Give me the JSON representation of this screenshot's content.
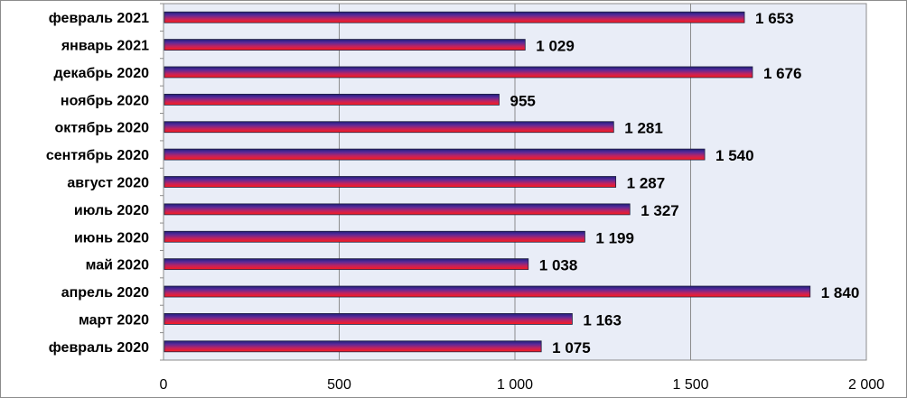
{
  "chart_data": {
    "type": "bar",
    "orientation": "horizontal",
    "categories": [
      "февраль 2021",
      "январь 2021",
      "декабрь 2020",
      "ноябрь 2020",
      "октябрь 2020",
      "сентябрь 2020",
      "август 2020",
      "июль 2020",
      "июнь 2020",
      "май 2020",
      "апрель 2020",
      "март 2020",
      "февраль 2020"
    ],
    "values": [
      1653,
      1029,
      1676,
      955,
      1281,
      1540,
      1287,
      1327,
      1199,
      1038,
      1840,
      1163,
      1075
    ],
    "value_labels": [
      "1 653",
      "1 029",
      "1 676",
      "955",
      "1 281",
      "1 540",
      "1 287",
      "1 327",
      "1 199",
      "1 038",
      "1 840",
      "1 163",
      "1 075"
    ],
    "xlim": [
      0,
      2000
    ],
    "x_ticks": [
      0,
      500,
      1000,
      1500,
      2000
    ],
    "x_tick_labels": [
      "0",
      "500",
      "1 000",
      "1 500",
      "2 000"
    ],
    "grid": "vertical",
    "legend": "none",
    "title": "",
    "xlabel": "",
    "ylabel": ""
  },
  "colors": {
    "plot_background": "#e9edf7",
    "gridline": "#8c8c8c",
    "bar_gradient": [
      "#1e1e78",
      "#5a2a9a",
      "#c0235f",
      "#ff1a1a"
    ],
    "bar_border": "#202040"
  }
}
